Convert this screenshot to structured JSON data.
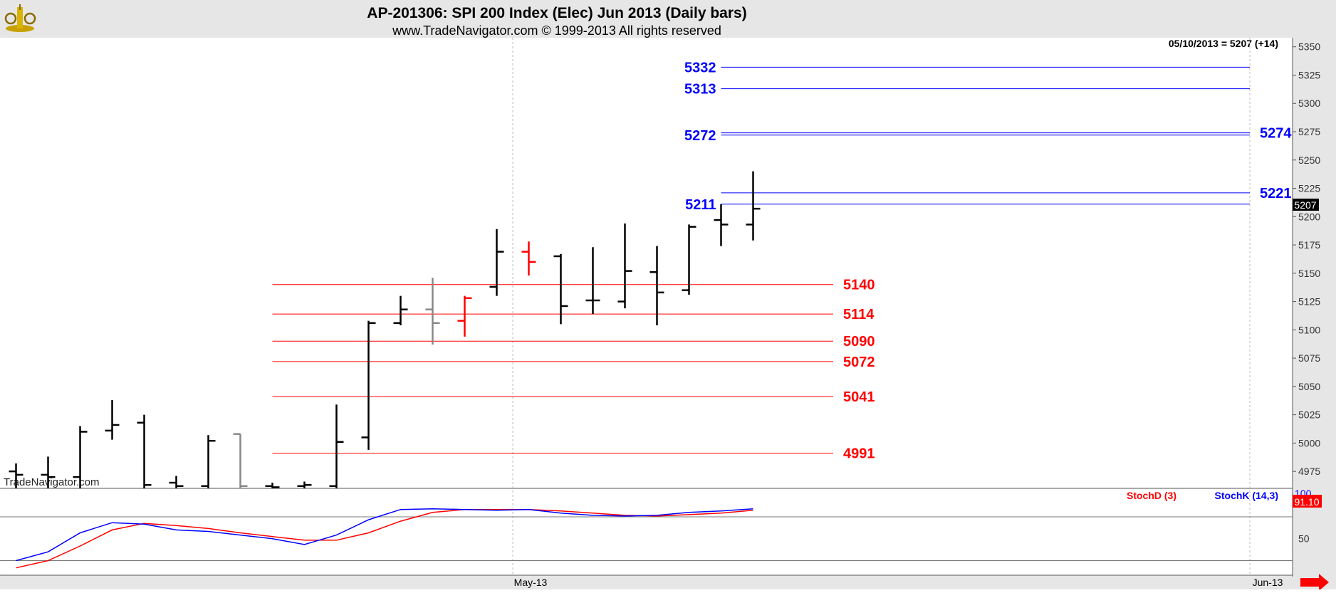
{
  "header": {
    "title": "AP-201306:  SPI 200 Index (Elec) Jun 2013  (Daily bars)",
    "subtitle": "www.TradeNavigator.com © 1999-2013 All rights reserved",
    "last_price_note": "05/10/2013 = 5207 (+14)",
    "watermark": "TradeNavigator.com",
    "logo": "trade-navigator-logo-icon"
  },
  "colors": {
    "up_levels": "#0000ff",
    "down_levels": "#ff0000",
    "bars_default": "#000000",
    "bars_red": "#ff0000",
    "bars_gray": "#888888",
    "stoch_d": "#ff0000",
    "stoch_k": "#0000ff"
  },
  "chart_data": {
    "type": "ohlc",
    "y_axis": {
      "range": [
        4960,
        5358
      ],
      "ticks": [
        "4975",
        "5000",
        "5025",
        "5050",
        "5075",
        "5100",
        "5125",
        "5150",
        "5175",
        "5200",
        "5225",
        "5250",
        "5275",
        "5300",
        "5325",
        "5350"
      ]
    },
    "x_axis": {
      "labels": [
        {
          "label": "May-13",
          "bar_index": 15.5
        },
        {
          "label": "Jun-13",
          "bar_index": 38.5
        }
      ]
    },
    "last_price": {
      "value": 5207,
      "label": "5207"
    },
    "bars": [
      {
        "o": 4975,
        "h": 4982,
        "l": 4960,
        "c": 4972,
        "color": "black"
      },
      {
        "o": 4972,
        "h": 4988,
        "l": 4960,
        "c": 4970,
        "color": "black"
      },
      {
        "o": 4970,
        "h": 5015,
        "l": 4960,
        "c": 5010,
        "color": "black"
      },
      {
        "o": 5011,
        "h": 5038,
        "l": 5003,
        "c": 5016,
        "color": "black"
      },
      {
        "o": 5018,
        "h": 5025,
        "l": 4960,
        "c": 4963,
        "color": "black"
      },
      {
        "o": 4965,
        "h": 4971,
        "l": 4960,
        "c": 4962,
        "color": "black"
      },
      {
        "o": 4962,
        "h": 5007,
        "l": 4960,
        "c": 5002,
        "color": "black"
      },
      {
        "o": 5008,
        "h": 5008,
        "l": 4960,
        "c": 4962,
        "color": "gray"
      },
      {
        "o": 4962,
        "h": 4965,
        "l": 4960,
        "c": 4961,
        "color": "black"
      },
      {
        "o": 4962,
        "h": 4966,
        "l": 4960,
        "c": 4963,
        "color": "black"
      },
      {
        "o": 4962,
        "h": 5034,
        "l": 4960,
        "c": 5001,
        "color": "black"
      },
      {
        "o": 5005,
        "h": 5108,
        "l": 4994,
        "c": 5106,
        "color": "black"
      },
      {
        "o": 5106,
        "h": 5130,
        "l": 5104,
        "c": 5118,
        "color": "black"
      },
      {
        "o": 5118,
        "h": 5146,
        "l": 5087,
        "c": 5106,
        "color": "gray"
      },
      {
        "o": 5108,
        "h": 5130,
        "l": 5094,
        "c": 5128,
        "color": "red"
      },
      {
        "o": 5138,
        "h": 5189,
        "l": 5130,
        "c": 5169,
        "color": "black"
      },
      {
        "o": 5169,
        "h": 5178,
        "l": 5148,
        "c": 5160,
        "color": "red"
      },
      {
        "o": 5165,
        "h": 5167,
        "l": 5105,
        "c": 5121,
        "color": "black"
      },
      {
        "o": 5126,
        "h": 5173,
        "l": 5114,
        "c": 5126,
        "color": "black"
      },
      {
        "o": 5125,
        "h": 5194,
        "l": 5119,
        "c": 5152,
        "color": "black"
      },
      {
        "o": 5151,
        "h": 5174,
        "l": 5104,
        "c": 5133,
        "color": "black"
      },
      {
        "o": 5135,
        "h": 5193,
        "l": 5131,
        "c": 5191,
        "color": "black"
      },
      {
        "o": 5197,
        "h": 5211,
        "l": 5174,
        "c": 5193,
        "color": "black"
      },
      {
        "o": 5193,
        "h": 5240,
        "l": 5179,
        "c": 5207,
        "color": "black"
      }
    ],
    "levels": [
      {
        "value": 5332,
        "label": "5332",
        "color": "blue",
        "start_bar": 22,
        "end_bar": 38.5,
        "label_side": "left"
      },
      {
        "value": 5313,
        "label": "5313",
        "color": "blue",
        "start_bar": 22,
        "end_bar": 38.5,
        "label_side": "left"
      },
      {
        "value": 5272,
        "label": "5272",
        "color": "blue",
        "start_bar": 22,
        "end_bar": 38.5,
        "label_side": "left"
      },
      {
        "value": 5274,
        "label": "5274",
        "color": "blue",
        "start_bar": 22,
        "end_bar": 38.5,
        "label_side": "right"
      },
      {
        "value": 5221,
        "label": "5221",
        "color": "blue",
        "start_bar": 22,
        "end_bar": 38.5,
        "label_side": "right"
      },
      {
        "value": 5211,
        "label": "5211",
        "color": "blue",
        "start_bar": 22,
        "end_bar": 38.5,
        "label_side": "left"
      },
      {
        "value": 5140,
        "label": "5140",
        "color": "red",
        "start_bar": 8,
        "end_bar": 25.5,
        "label_side": "right"
      },
      {
        "value": 5114,
        "label": "5114",
        "color": "red",
        "start_bar": 8,
        "end_bar": 25.5,
        "label_side": "right"
      },
      {
        "value": 5090,
        "label": "5090",
        "color": "red",
        "start_bar": 8,
        "end_bar": 25.5,
        "label_side": "right"
      },
      {
        "value": 5072,
        "label": "5072",
        "color": "red",
        "start_bar": 8,
        "end_bar": 25.5,
        "label_side": "right"
      },
      {
        "value": 5041,
        "label": "5041",
        "color": "red",
        "start_bar": 8,
        "end_bar": 25.5,
        "label_side": "right"
      },
      {
        "value": 4991,
        "label": "4991",
        "color": "red",
        "start_bar": 8,
        "end_bar": 25.5,
        "label_side": "right"
      }
    ],
    "stochastic": {
      "legend_d": "StochD (3)",
      "legend_k": "StochK (14,3)",
      "value_label": "91.10",
      "top_tick": "100",
      "ticks": [
        "50"
      ],
      "range": [
        0,
        118
      ],
      "ref_lines": [
        80,
        20
      ],
      "k": [
        20,
        32,
        58,
        72,
        70,
        62,
        60,
        55,
        50,
        42,
        55,
        76,
        90,
        91,
        90,
        89,
        90,
        85,
        82,
        81,
        82,
        86,
        88,
        91
      ],
      "d": [
        10,
        20,
        40,
        62,
        71,
        68,
        64,
        58,
        53,
        48,
        48,
        58,
        74,
        86,
        90,
        90,
        90,
        88,
        85,
        82,
        81,
        83,
        85,
        89
      ]
    }
  }
}
